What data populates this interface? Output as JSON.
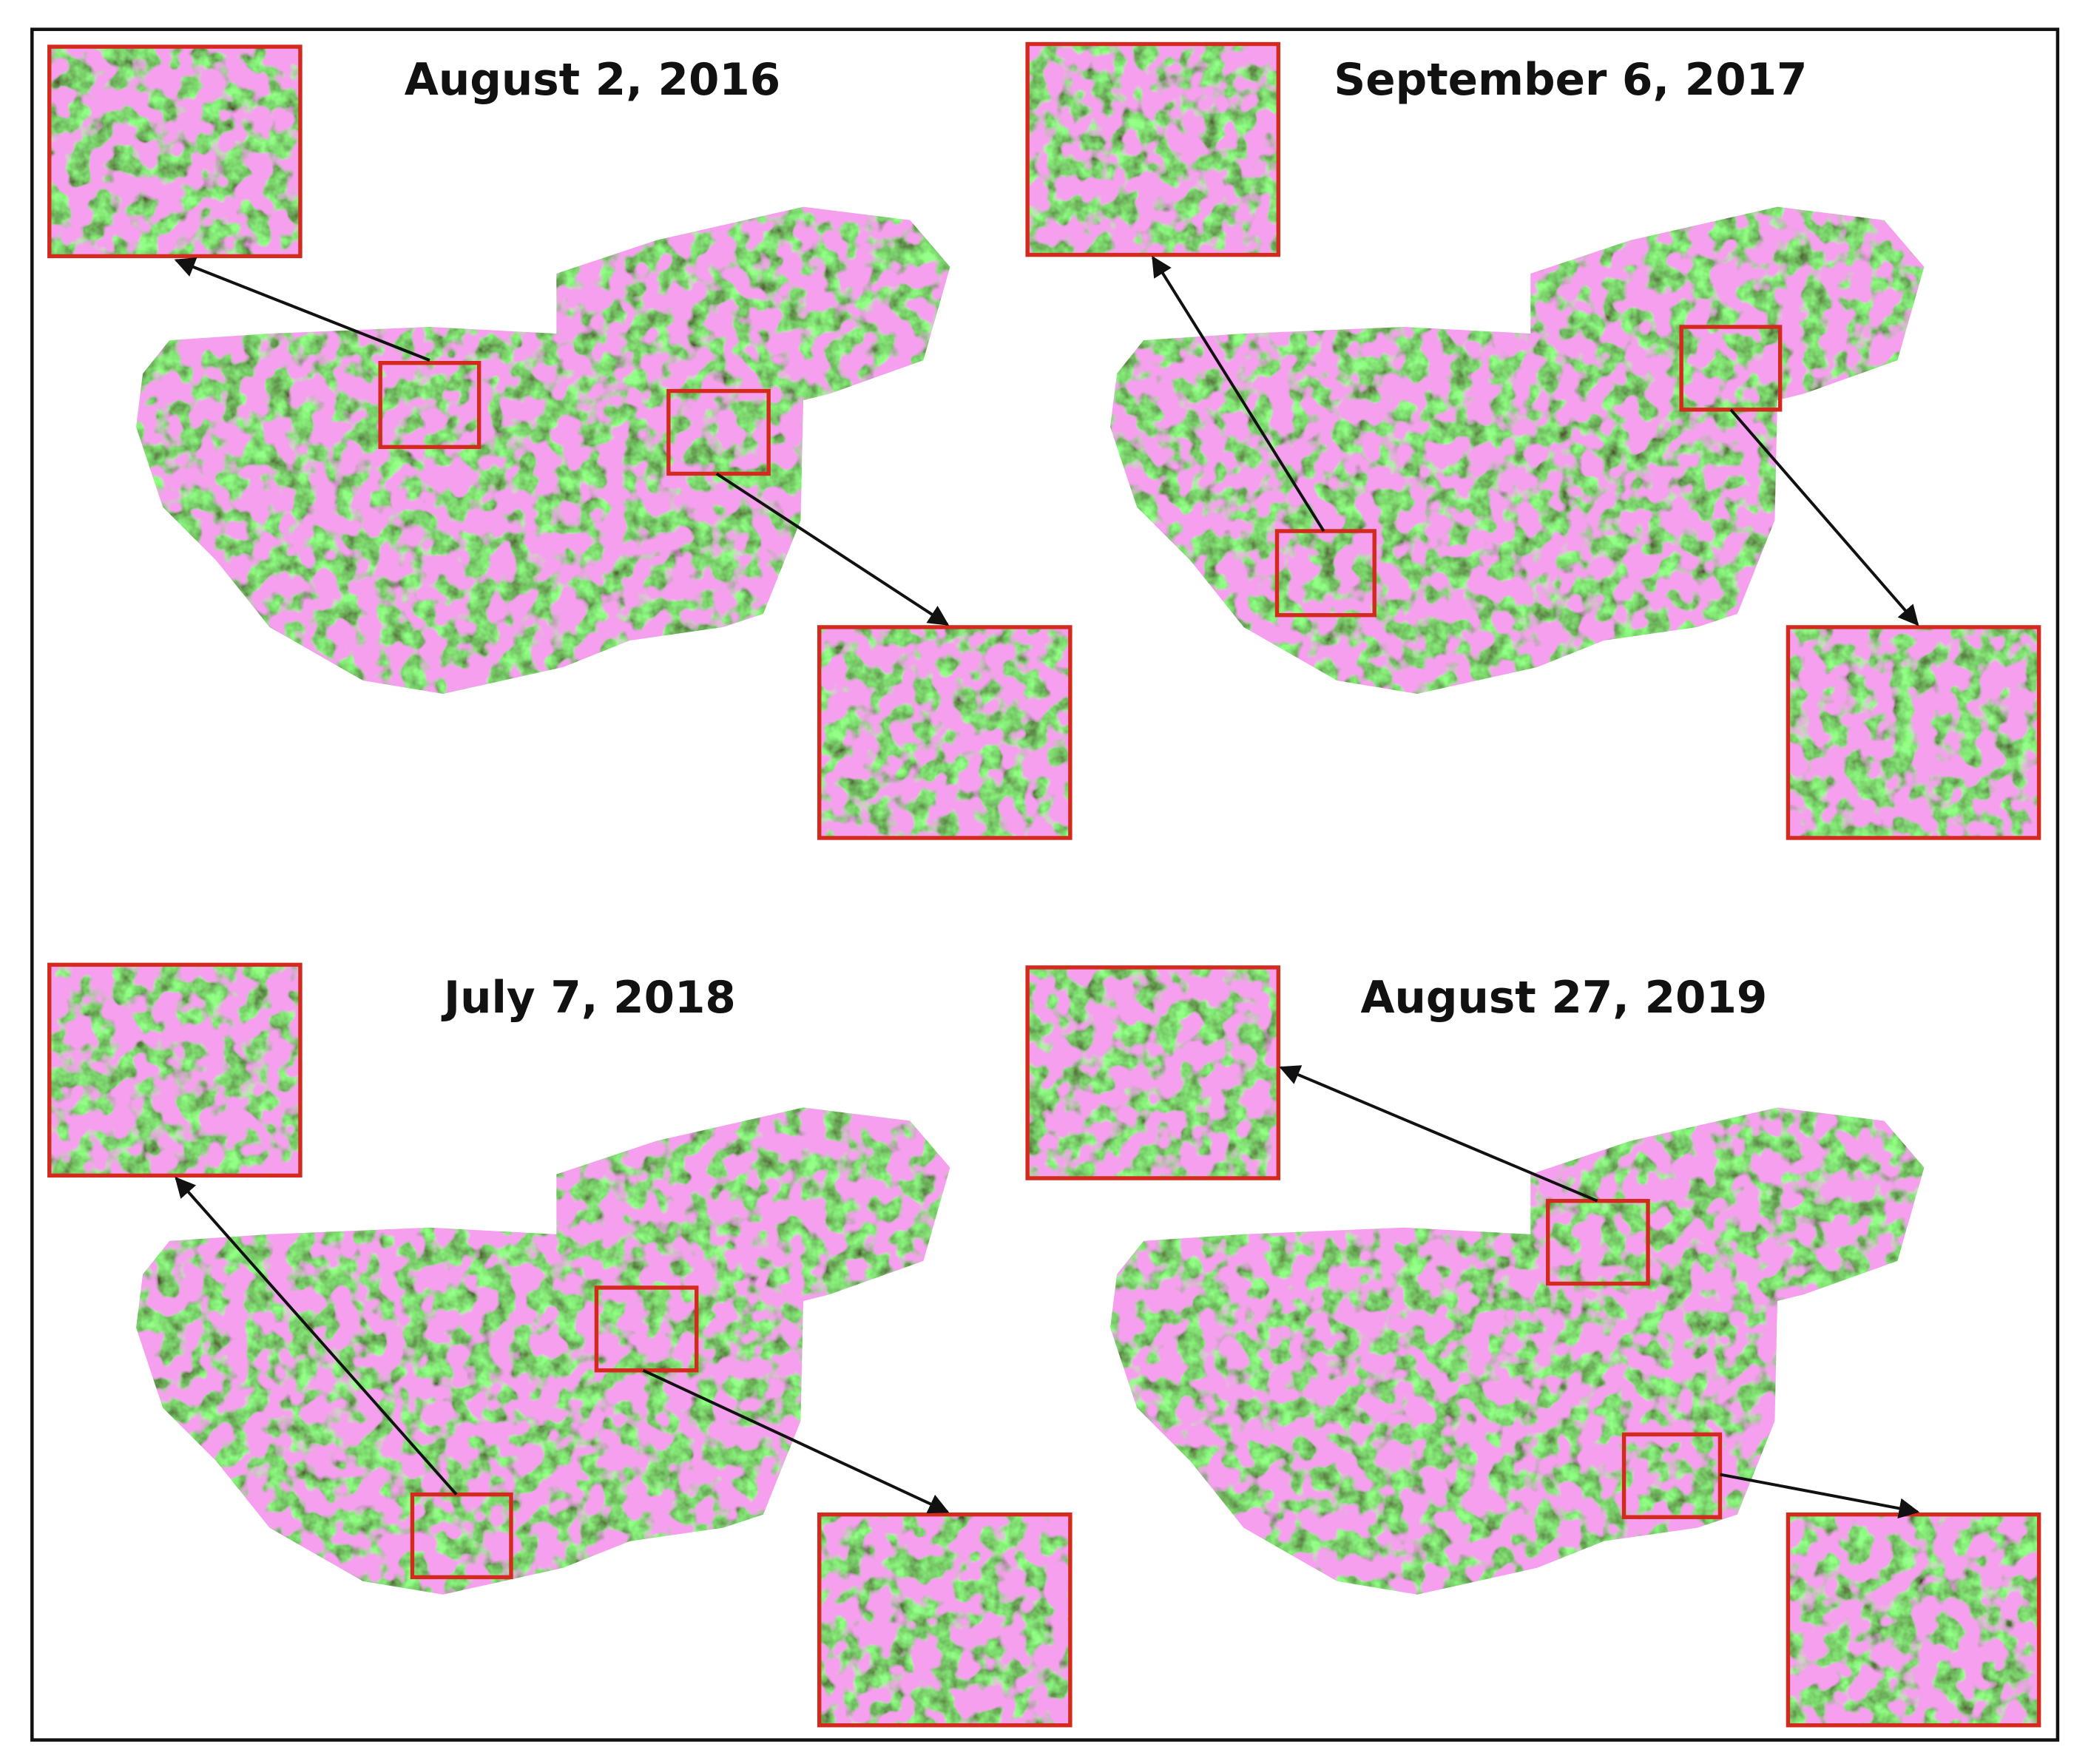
{
  "panels": [
    {
      "title": "August 2, 2016"
    },
    {
      "title": "September 6, 2017"
    },
    {
      "title": "July 7, 2018"
    },
    {
      "title": "August 27, 2019"
    }
  ]
}
